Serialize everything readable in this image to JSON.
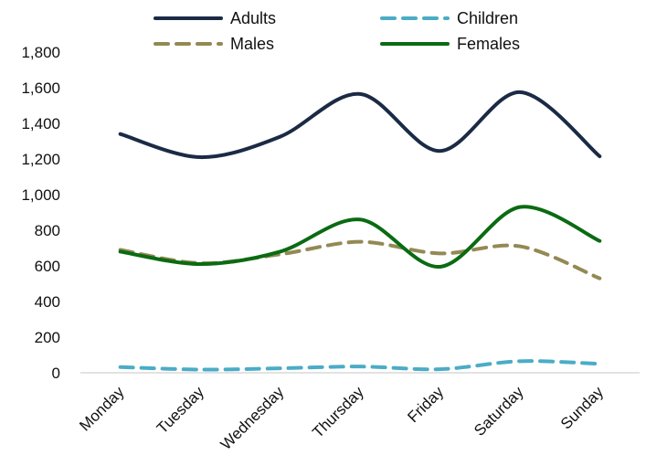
{
  "chart_data": {
    "type": "line",
    "title": "",
    "xlabel": "",
    "ylabel": "",
    "categories": [
      "Monday",
      "Tuesday",
      "Wednesday",
      "Thursday",
      "Friday",
      "Saturday",
      "Sunday"
    ],
    "ylim": [
      0,
      1800
    ],
    "yticks": [
      "0",
      "200",
      "400",
      "600",
      "800",
      "1,000",
      "1,200",
      "1,400",
      "1,600",
      "1,800"
    ],
    "grid": false,
    "legend_position": "top",
    "series": [
      {
        "name": "Adults",
        "values": [
          1340,
          1210,
          1325,
          1565,
          1245,
          1575,
          1215
        ],
        "color": "#1b2a45",
        "dash": "solid"
      },
      {
        "name": "Children",
        "values": [
          32,
          18,
          25,
          35,
          20,
          65,
          50
        ],
        "color": "#4bacc6",
        "dash": "dashed"
      },
      {
        "name": "Males",
        "values": [
          690,
          615,
          665,
          735,
          670,
          710,
          530
        ],
        "color": "#938953",
        "dash": "dashed"
      },
      {
        "name": "Females",
        "values": [
          680,
          610,
          680,
          860,
          595,
          930,
          740
        ],
        "color": "#0a6b12",
        "dash": "solid"
      }
    ]
  }
}
